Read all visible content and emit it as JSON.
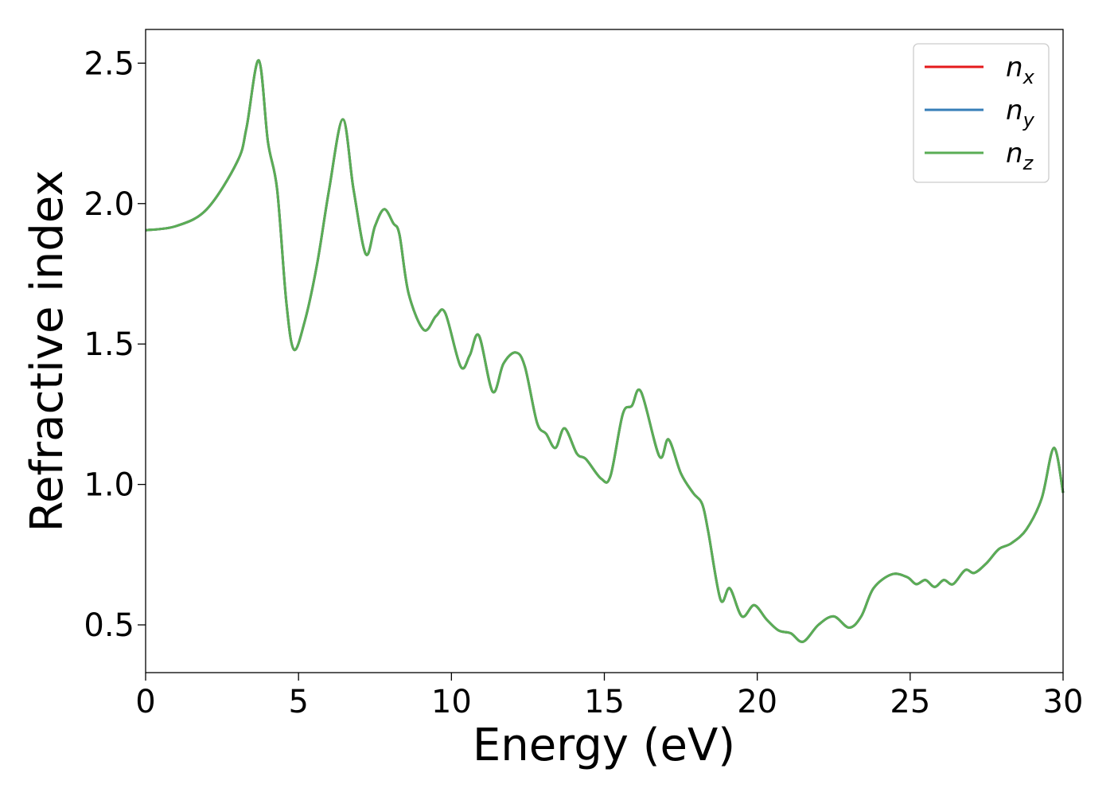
{
  "chart_data": {
    "type": "line",
    "title": "",
    "xlabel": "Energy (eV)",
    "ylabel": "Refractive index",
    "xlim": [
      0,
      30
    ],
    "ylim": [
      0.33,
      2.62
    ],
    "xticks": [
      0,
      5,
      10,
      15,
      20,
      25,
      30
    ],
    "xtick_labels": [
      "0",
      "5",
      "10",
      "15",
      "20",
      "25",
      "30"
    ],
    "yticks": [
      0.5,
      1.0,
      1.5,
      2.0,
      2.5
    ],
    "ytick_labels": [
      "0.5",
      "1.0",
      "1.5",
      "2.0",
      "2.5"
    ],
    "grid": false,
    "legend_position": "top-right",
    "x": [
      0,
      1,
      2,
      3,
      3.3,
      3.7,
      4.0,
      4.3,
      4.6,
      4.85,
      5.2,
      5.6,
      6.0,
      6.45,
      6.8,
      7.2,
      7.5,
      7.8,
      8.1,
      8.3,
      8.6,
      9.1,
      9.5,
      9.8,
      10.3,
      10.6,
      10.9,
      11.35,
      11.7,
      12.1,
      12.4,
      12.8,
      13.1,
      13.4,
      13.7,
      14.1,
      14.4,
      14.9,
      15.2,
      15.6,
      15.9,
      16.2,
      16.8,
      17.1,
      17.5,
      17.9,
      18.2,
      18.4,
      18.8,
      19.1,
      19.5,
      19.9,
      20.3,
      20.7,
      21.1,
      21.5,
      22.0,
      22.5,
      23.0,
      23.4,
      23.8,
      24.4,
      24.9,
      25.2,
      25.5,
      25.8,
      26.1,
      26.4,
      26.8,
      27.1,
      27.5,
      27.9,
      28.3,
      28.8,
      29.3,
      29.7,
      30.0
    ],
    "series": [
      {
        "name": "n",
        "sub": "x",
        "color": "#e41a1c",
        "values": [
          1.905,
          1.92,
          1.98,
          2.15,
          2.27,
          2.51,
          2.22,
          2.05,
          1.65,
          1.48,
          1.58,
          1.78,
          2.05,
          2.3,
          2.05,
          1.82,
          1.92,
          1.98,
          1.93,
          1.89,
          1.68,
          1.55,
          1.6,
          1.61,
          1.42,
          1.46,
          1.53,
          1.33,
          1.43,
          1.47,
          1.42,
          1.22,
          1.18,
          1.13,
          1.2,
          1.11,
          1.09,
          1.02,
          1.03,
          1.25,
          1.28,
          1.33,
          1.1,
          1.16,
          1.04,
          0.97,
          0.93,
          0.83,
          0.59,
          0.63,
          0.53,
          0.57,
          0.52,
          0.48,
          0.47,
          0.44,
          0.5,
          0.53,
          0.49,
          0.53,
          0.63,
          0.68,
          0.67,
          0.645,
          0.66,
          0.635,
          0.66,
          0.645,
          0.695,
          0.685,
          0.72,
          0.77,
          0.79,
          0.84,
          0.95,
          1.13,
          0.97
        ]
      },
      {
        "name": "n",
        "sub": "y",
        "color": "#377eb8",
        "values": [
          1.905,
          1.92,
          1.98,
          2.15,
          2.27,
          2.51,
          2.22,
          2.05,
          1.65,
          1.48,
          1.58,
          1.78,
          2.05,
          2.3,
          2.05,
          1.82,
          1.92,
          1.98,
          1.93,
          1.89,
          1.68,
          1.55,
          1.6,
          1.61,
          1.42,
          1.46,
          1.53,
          1.33,
          1.43,
          1.47,
          1.42,
          1.22,
          1.18,
          1.13,
          1.2,
          1.11,
          1.09,
          1.02,
          1.03,
          1.25,
          1.28,
          1.33,
          1.1,
          1.16,
          1.04,
          0.97,
          0.93,
          0.83,
          0.59,
          0.63,
          0.53,
          0.57,
          0.52,
          0.48,
          0.47,
          0.44,
          0.5,
          0.53,
          0.49,
          0.53,
          0.63,
          0.68,
          0.67,
          0.645,
          0.66,
          0.635,
          0.66,
          0.645,
          0.695,
          0.685,
          0.72,
          0.77,
          0.79,
          0.84,
          0.95,
          1.13,
          0.97
        ]
      },
      {
        "name": "n",
        "sub": "z",
        "color": "#5aad55",
        "values": [
          1.905,
          1.92,
          1.98,
          2.15,
          2.27,
          2.51,
          2.22,
          2.05,
          1.65,
          1.48,
          1.58,
          1.78,
          2.05,
          2.3,
          2.05,
          1.82,
          1.92,
          1.98,
          1.93,
          1.89,
          1.68,
          1.55,
          1.6,
          1.61,
          1.42,
          1.46,
          1.53,
          1.33,
          1.43,
          1.47,
          1.42,
          1.22,
          1.18,
          1.13,
          1.2,
          1.11,
          1.09,
          1.02,
          1.03,
          1.25,
          1.28,
          1.33,
          1.1,
          1.16,
          1.04,
          0.97,
          0.93,
          0.83,
          0.59,
          0.63,
          0.53,
          0.57,
          0.52,
          0.48,
          0.47,
          0.44,
          0.5,
          0.53,
          0.49,
          0.53,
          0.63,
          0.68,
          0.67,
          0.645,
          0.66,
          0.635,
          0.66,
          0.645,
          0.695,
          0.685,
          0.72,
          0.77,
          0.79,
          0.84,
          0.95,
          1.13,
          0.97
        ]
      }
    ]
  }
}
